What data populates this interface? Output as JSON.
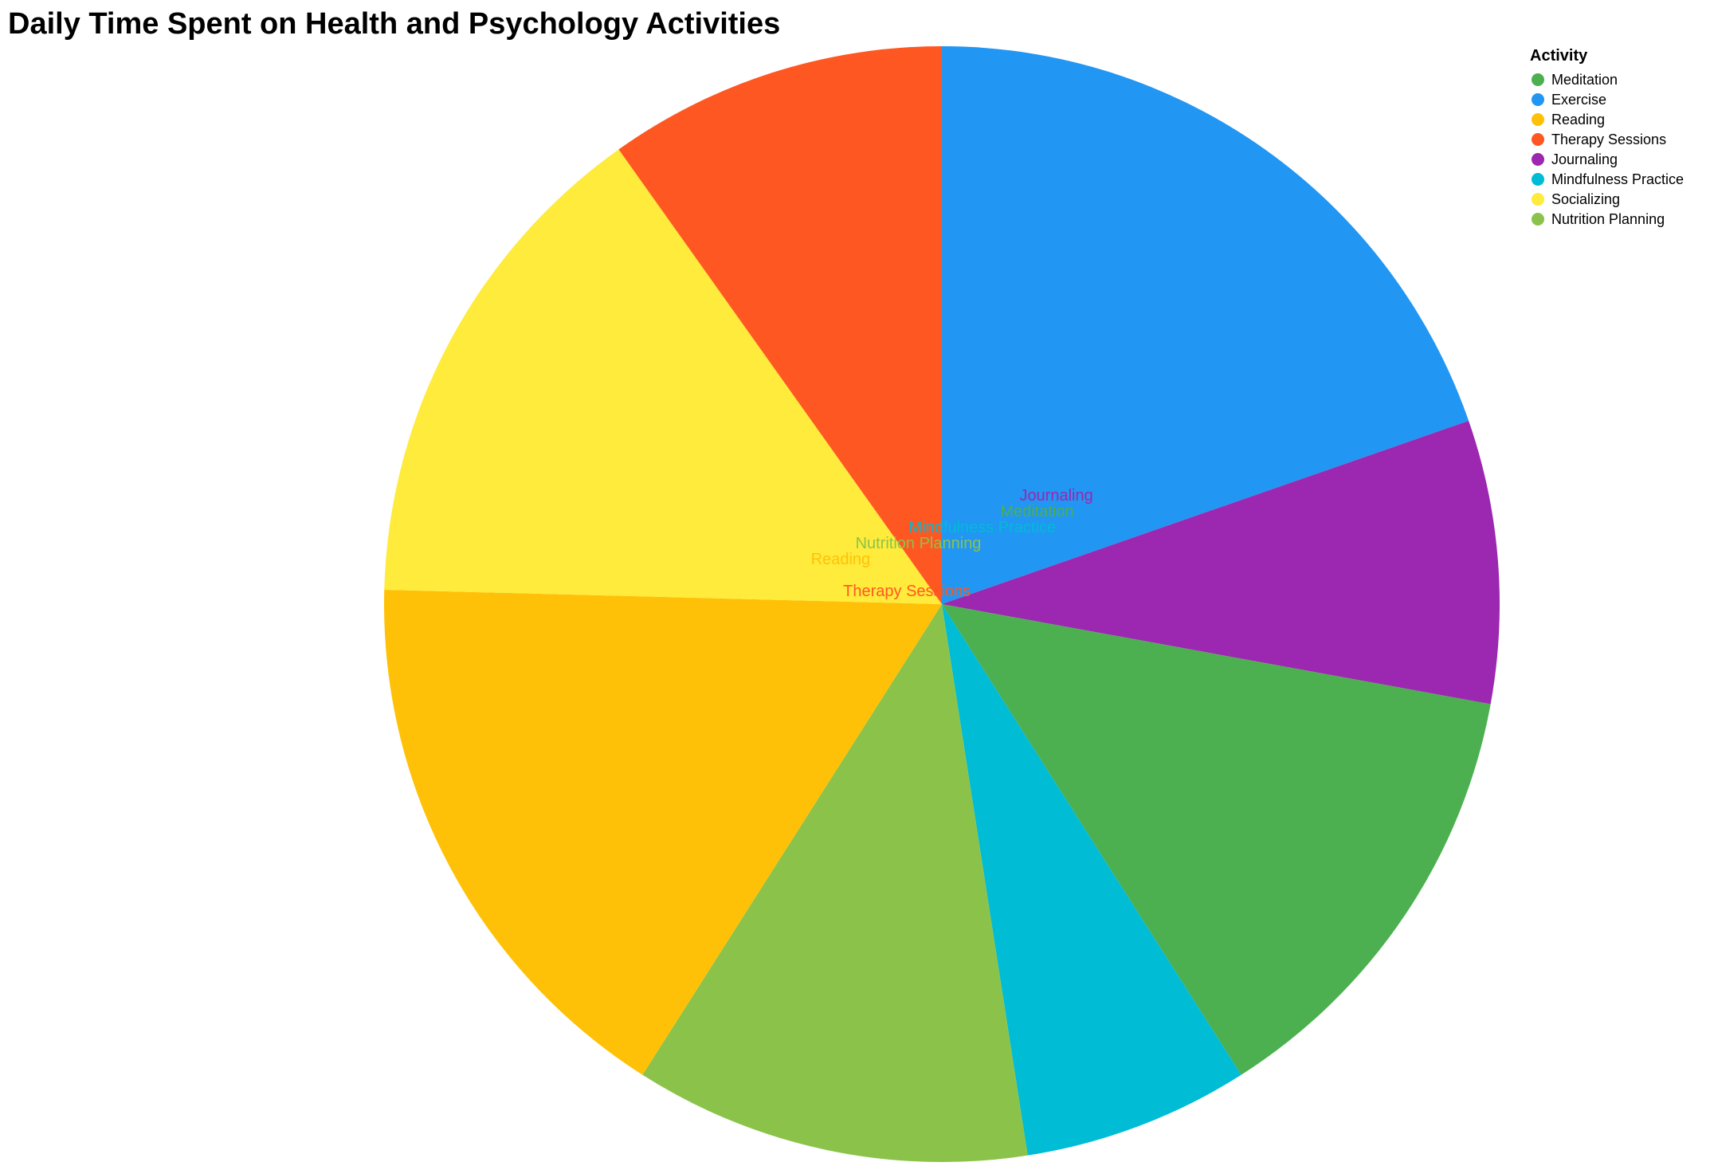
{
  "chart_data": {
    "type": "pie",
    "title": "Daily Time Spent on Health and Psychology Activities",
    "legend_title": "Activity",
    "legend_position": "top-right",
    "categories": [
      "Meditation",
      "Exercise",
      "Reading",
      "Therapy Sessions",
      "Journaling",
      "Mindfulness Practice",
      "Socializing",
      "Nutrition Planning"
    ],
    "colors": [
      "#4CAF50",
      "#2196F3",
      "#FFC107",
      "#FF5722",
      "#9C27B0",
      "#00BCD4",
      "#FFEB3B",
      "#8BC34A"
    ],
    "slices": [
      {
        "label": "Exercise",
        "value": 60
      },
      {
        "label": "Journaling",
        "value": 25
      },
      {
        "label": "Meditation",
        "value": 40
      },
      {
        "label": "Mindfulness Practice",
        "value": 20
      },
      {
        "label": "Nutrition Planning",
        "value": 35
      },
      {
        "label": "Reading",
        "value": 50
      },
      {
        "label": "Socializing",
        "value": 45
      },
      {
        "label": "Therapy Sessions",
        "value": 30
      }
    ]
  }
}
